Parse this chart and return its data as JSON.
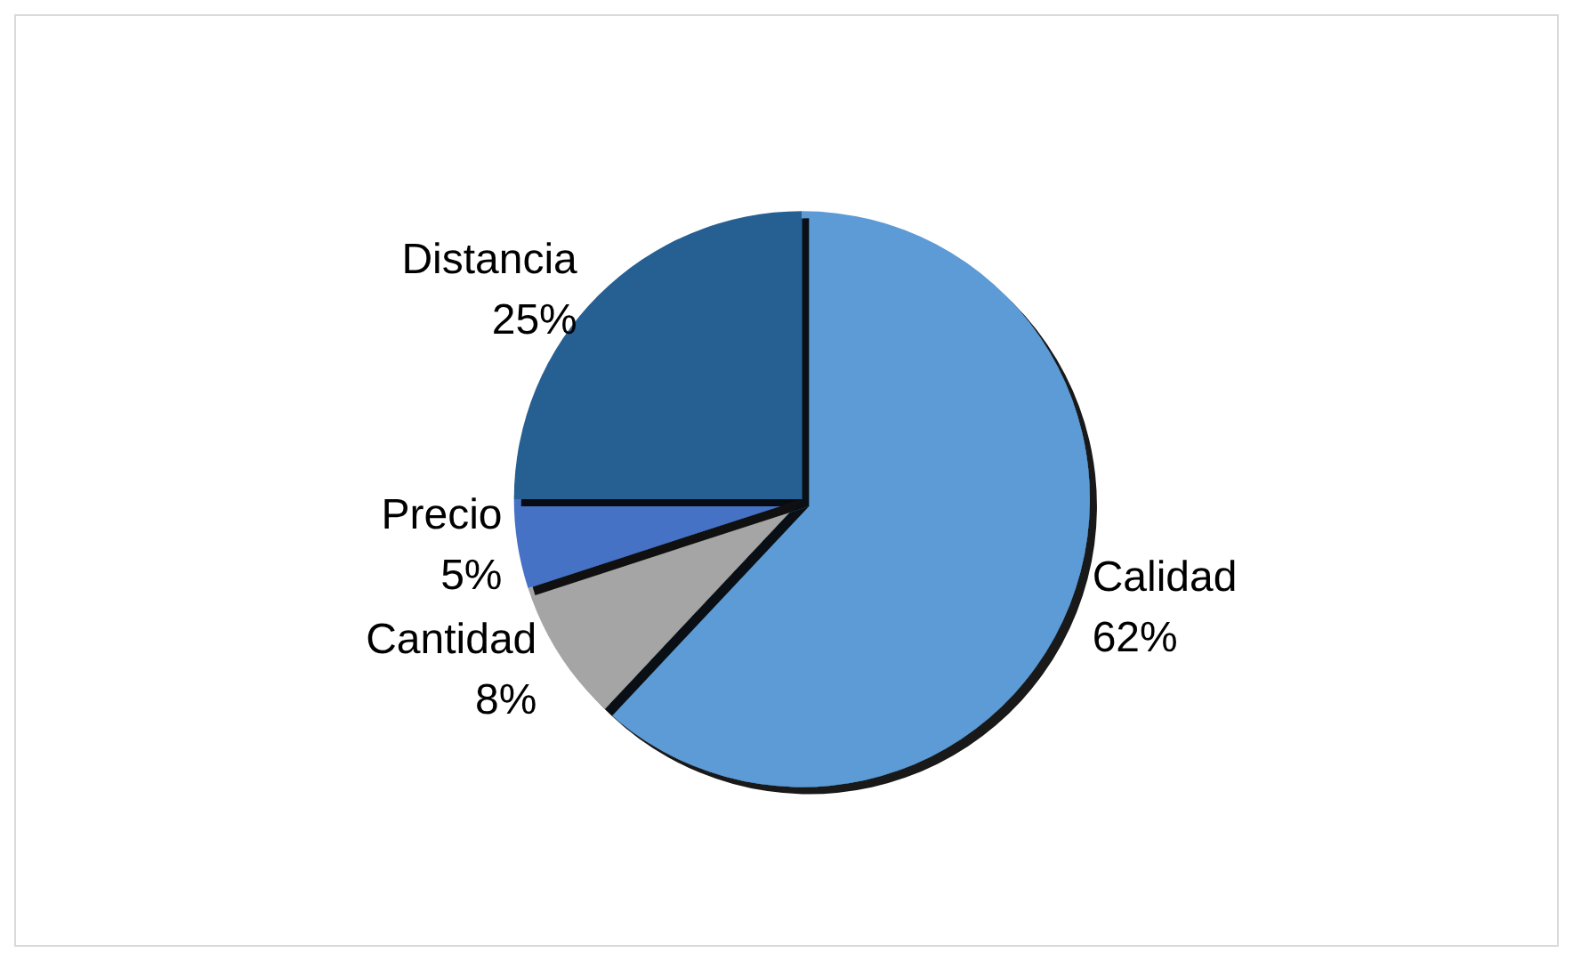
{
  "chart_data": {
    "type": "pie",
    "categories": [
      "Calidad",
      "Cantidad",
      "Precio",
      "Distancia"
    ],
    "values": [
      62,
      8,
      5,
      25
    ],
    "colors": [
      "#5b9bd5",
      "#a5a5a5",
      "#4472c4",
      "#255e91"
    ],
    "value_labels": [
      "62%",
      "8%",
      "5%",
      "25%"
    ],
    "legend": false
  }
}
